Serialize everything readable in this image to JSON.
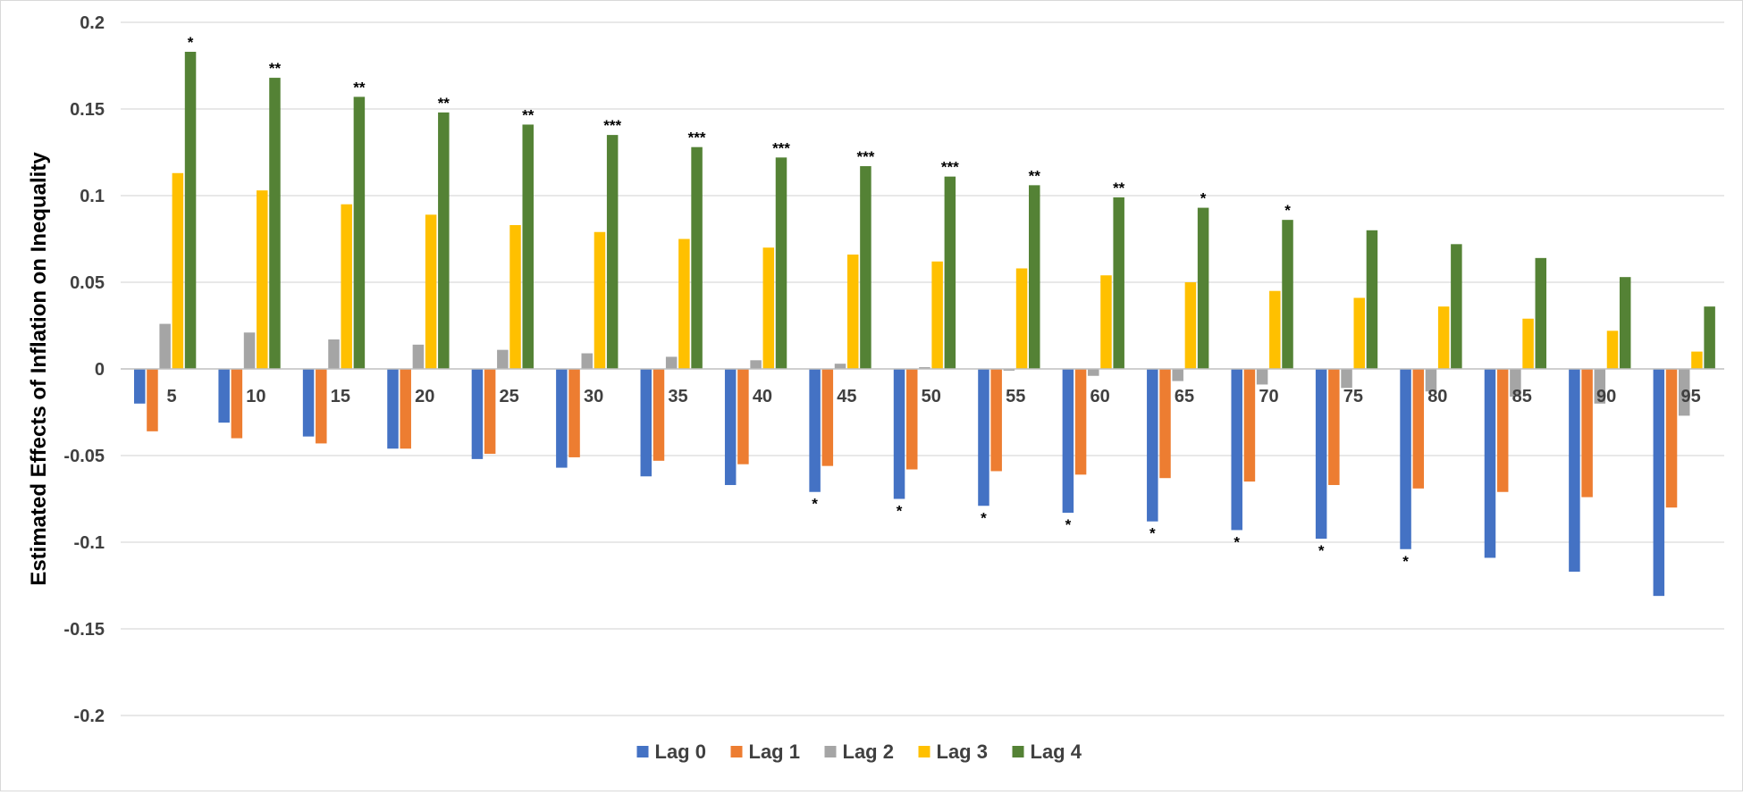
{
  "chart_data": {
    "type": "bar",
    "title": "",
    "xlabel": "",
    "ylabel": "Estimated Effects of Inflation on Inequality",
    "ylim": [
      -0.2,
      0.2
    ],
    "yticks": [
      0.2,
      0.15,
      0.1,
      0.05,
      0,
      -0.05,
      -0.1,
      -0.15,
      -0.2
    ],
    "ytick_labels": [
      "0.2",
      "0.15",
      "0.1",
      "0.05",
      "0",
      "-0.05",
      "-0.1",
      "-0.15",
      "-0.2"
    ],
    "grid": true,
    "legend_position": "bottom",
    "categories": [
      "5",
      "10",
      "15",
      "20",
      "25",
      "30",
      "35",
      "40",
      "45",
      "50",
      "55",
      "60",
      "65",
      "70",
      "75",
      "80",
      "85",
      "90",
      "95"
    ],
    "series": [
      {
        "name": "Lag 0",
        "color": "#4472C4",
        "values": [
          -0.02,
          -0.031,
          -0.039,
          -0.046,
          -0.052,
          -0.057,
          -0.062,
          -0.067,
          -0.071,
          -0.075,
          -0.079,
          -0.083,
          -0.088,
          -0.093,
          -0.098,
          -0.104,
          -0.109,
          -0.117,
          -0.131
        ],
        "significance": [
          "",
          "",
          "",
          "",
          "",
          "",
          "",
          "",
          "*",
          "*",
          "*",
          "*",
          "*",
          "*",
          "*",
          "*",
          "",
          "",
          ""
        ]
      },
      {
        "name": "Lag 1",
        "color": "#ED7D31",
        "values": [
          -0.036,
          -0.04,
          -0.043,
          -0.046,
          -0.049,
          -0.051,
          -0.053,
          -0.055,
          -0.056,
          -0.058,
          -0.059,
          -0.061,
          -0.063,
          -0.065,
          -0.067,
          -0.069,
          -0.071,
          -0.074,
          -0.08
        ],
        "significance": []
      },
      {
        "name": "Lag 2",
        "color": "#A5A5A5",
        "values": [
          0.026,
          0.021,
          0.017,
          0.014,
          0.011,
          0.009,
          0.007,
          0.005,
          0.003,
          0.001,
          -0.001,
          -0.004,
          -0.007,
          -0.009,
          -0.011,
          -0.013,
          -0.016,
          -0.02,
          -0.027
        ],
        "significance": []
      },
      {
        "name": "Lag 3",
        "color": "#FFC000",
        "values": [
          0.113,
          0.103,
          0.095,
          0.089,
          0.083,
          0.079,
          0.075,
          0.07,
          0.066,
          0.062,
          0.058,
          0.054,
          0.05,
          0.045,
          0.041,
          0.036,
          0.029,
          0.022,
          0.01
        ],
        "significance": []
      },
      {
        "name": "Lag 4",
        "color": "#548235",
        "values": [
          0.183,
          0.168,
          0.157,
          0.148,
          0.141,
          0.135,
          0.128,
          0.122,
          0.117,
          0.111,
          0.106,
          0.099,
          0.093,
          0.086,
          0.08,
          0.072,
          0.064,
          0.053,
          0.036
        ],
        "significance": [
          "*",
          "**",
          "**",
          "**",
          "**",
          "***",
          "***",
          "***",
          "***",
          "***",
          "**",
          "**",
          "*",
          "*",
          "",
          "",
          "",
          "",
          ""
        ]
      }
    ]
  }
}
